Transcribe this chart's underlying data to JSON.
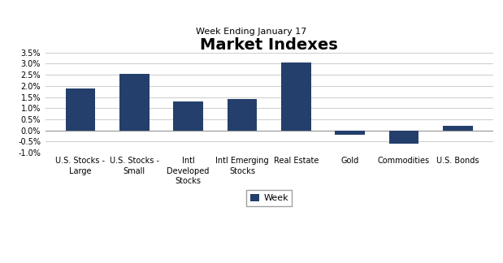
{
  "title": "Market Indexes",
  "subtitle": "Week Ending January 17",
  "categories": [
    "U.S. Stocks -\nLarge",
    "U.S. Stocks -\nSmall",
    "Intl\nDeveloped\nStocks",
    "Intl Emerging\nStocks",
    "Real Estate",
    "Gold",
    "Commodities",
    "U.S. Bonds"
  ],
  "values": [
    0.019,
    0.0255,
    0.013,
    0.014,
    0.0305,
    -0.002,
    -0.006,
    0.002
  ],
  "bar_color": "#243f6b",
  "ylim": [
    -0.01,
    0.035
  ],
  "yticks": [
    -0.01,
    -0.005,
    0.0,
    0.005,
    0.01,
    0.015,
    0.02,
    0.025,
    0.03,
    0.035
  ],
  "legend_label": "Week",
  "background_color": "#ffffff",
  "grid_color": "#d0d0d0",
  "title_fontsize": 14,
  "subtitle_fontsize": 8,
  "tick_fontsize": 7,
  "legend_fontsize": 8
}
